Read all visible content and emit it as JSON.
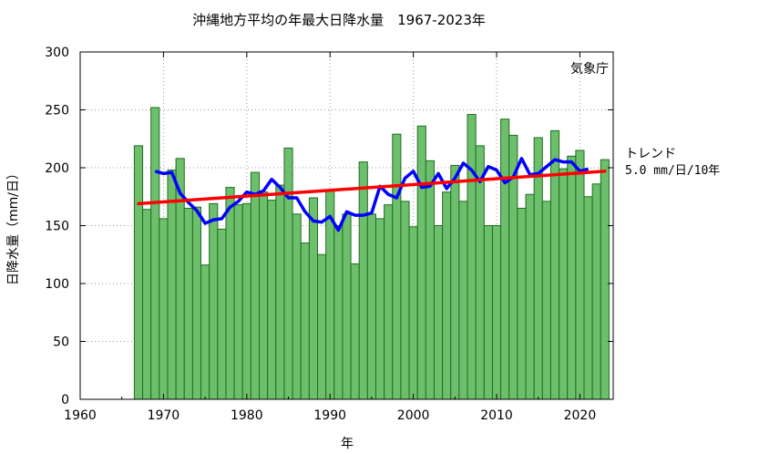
{
  "chart_data": {
    "type": "bar",
    "title": "沖縄地方平均の年最大日降水量　1967-2023年",
    "xlabel": "年",
    "ylabel": "日降水量（mm/日）",
    "source": "気象庁",
    "xlim": [
      1960,
      2024
    ],
    "ylim": [
      0,
      300
    ],
    "xticks": [
      1960,
      1970,
      1980,
      1990,
      2000,
      2010,
      2020
    ],
    "yticks": [
      0,
      50,
      100,
      150,
      200,
      250,
      300
    ],
    "grid": true,
    "colors": {
      "bar_fill": "#6dbf6d",
      "bar_edge": "#1f6e1f",
      "moving_avg": "#0000ff",
      "trend": "#ff0000"
    },
    "trend_label": {
      "title": "トレンド",
      "value": "5.0 mm/日/10年"
    },
    "years": [
      1967,
      1968,
      1969,
      1970,
      1971,
      1972,
      1973,
      1974,
      1975,
      1976,
      1977,
      1978,
      1979,
      1980,
      1981,
      1982,
      1983,
      1984,
      1985,
      1986,
      1987,
      1988,
      1989,
      1990,
      1991,
      1992,
      1993,
      1994,
      1995,
      1996,
      1997,
      1998,
      1999,
      2000,
      2001,
      2002,
      2003,
      2004,
      2005,
      2006,
      2007,
      2008,
      2009,
      2010,
      2011,
      2012,
      2013,
      2014,
      2015,
      2016,
      2017,
      2018,
      2019,
      2020,
      2021,
      2022,
      2023
    ],
    "series": [
      {
        "type": "bar",
        "values": [
          219,
          164,
          252,
          156,
          198,
          208,
          165,
          166,
          116,
          169,
          147,
          183,
          168,
          169,
          196,
          179,
          172,
          185,
          217,
          160,
          135,
          174,
          125,
          180,
          150,
          160,
          117,
          205,
          160,
          156,
          168,
          229,
          171,
          149,
          236,
          206,
          150,
          179,
          202,
          171,
          246,
          219,
          150,
          150,
          242,
          228,
          165,
          177,
          226,
          171,
          232,
          199,
          210,
          215,
          175,
          186,
          207
        ]
      },
      {
        "type": "line",
        "values": [
          null,
          null,
          197,
          195,
          196,
          178,
          170,
          163,
          152,
          155,
          156,
          166,
          171,
          179,
          177,
          180,
          190,
          183,
          174,
          174,
          162,
          154,
          153,
          158,
          146,
          162,
          159,
          159,
          161,
          184,
          177,
          174,
          191,
          197,
          183,
          184,
          195,
          182,
          191,
          204,
          198,
          188,
          201,
          198,
          187,
          192,
          208,
          194,
          195,
          201,
          207,
          205,
          205,
          197,
          199,
          null,
          null
        ]
      },
      {
        "type": "line",
        "start": [
          1967,
          169
        ],
        "end": [
          2023,
          197
        ]
      }
    ]
  }
}
